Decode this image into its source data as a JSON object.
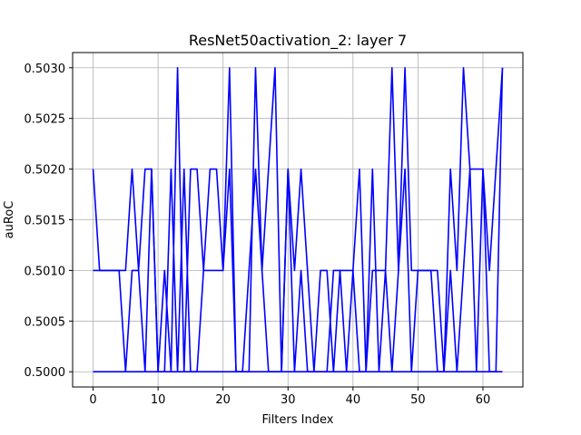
{
  "chart_data": {
    "type": "line",
    "title": "ResNet50activation_2: layer 7",
    "xlabel": "Filters Index",
    "ylabel": "auRoC",
    "xlim": [
      -3.15,
      66.15
    ],
    "ylim": [
      0.49985,
      0.50315
    ],
    "xticks": [
      0,
      10,
      20,
      30,
      40,
      50,
      60
    ],
    "yticks": [
      0.5,
      0.5005,
      0.501,
      0.5015,
      0.502,
      0.5025,
      0.503
    ],
    "ytick_labels": [
      "0.5000",
      "0.5005",
      "0.5010",
      "0.5015",
      "0.5020",
      "0.5025",
      "0.5030"
    ],
    "grid": true,
    "color": "#0000ff",
    "series": [
      {
        "x": [
          0,
          1,
          2,
          3,
          4,
          5,
          6,
          7,
          8,
          9,
          10,
          11,
          12,
          13,
          14,
          15,
          16,
          17,
          18,
          19,
          20,
          21,
          22,
          23,
          24,
          25,
          26,
          27,
          28,
          29,
          30,
          31,
          32,
          33,
          34,
          35,
          36,
          37,
          38,
          39,
          40,
          41,
          42,
          43,
          44,
          45,
          46,
          47,
          48,
          49,
          50,
          51,
          52,
          53,
          54,
          55,
          56,
          57,
          58,
          59,
          60,
          61,
          62,
          63
        ],
        "values": [
          0.502,
          0.501,
          0.501,
          0.501,
          0.501,
          0.501,
          0.502,
          0.501,
          0.5,
          0.502,
          0.5,
          0.501,
          0.5,
          0.503,
          0.5,
          0.502,
          0.502,
          0.501,
          0.502,
          0.502,
          0.501,
          0.503,
          0.5,
          0.5,
          0.5,
          0.503,
          0.501,
          0.502,
          0.503,
          0.5,
          0.502,
          0.501,
          0.502,
          0.501,
          0.5,
          0.5,
          0.5,
          0.501,
          0.501,
          0.5,
          0.501,
          0.502,
          0.5,
          0.501,
          0.501,
          0.501,
          0.503,
          0.501,
          0.503,
          0.501,
          0.501,
          0.501,
          0.501,
          0.501,
          0.5,
          0.502,
          0.501,
          0.503,
          0.502,
          0.502,
          0.502,
          0.501,
          0.502,
          0.503
        ]
      },
      {
        "x": [
          0,
          1,
          2,
          3,
          4,
          5,
          6,
          7,
          8,
          9,
          10,
          11,
          12,
          13,
          14,
          15,
          16,
          17,
          18,
          19,
          20,
          21,
          22,
          23,
          24,
          25,
          26,
          27,
          28,
          29,
          30,
          31,
          32,
          33,
          34,
          35,
          36,
          37,
          38,
          39,
          40,
          41,
          42,
          43,
          44,
          45,
          46,
          47,
          48,
          49,
          50,
          51,
          52,
          53,
          54,
          55,
          56,
          57,
          58,
          59,
          60,
          61,
          62,
          63
        ],
        "values": [
          0.501,
          0.501,
          0.501,
          0.501,
          0.501,
          0.5,
          0.501,
          0.501,
          0.502,
          0.502,
          0.5,
          0.5,
          0.502,
          0.5,
          0.502,
          0.5,
          0.5,
          0.501,
          0.501,
          0.501,
          0.501,
          0.502,
          0.5,
          0.5,
          0.501,
          0.502,
          0.501,
          0.5,
          0.5,
          0.5,
          0.502,
          0.5,
          0.501,
          0.5,
          0.5,
          0.501,
          0.501,
          0.5,
          0.501,
          0.501,
          0.501,
          0.5,
          0.5,
          0.502,
          0.5,
          0.501,
          0.5,
          0.501,
          0.502,
          0.5,
          0.501,
          0.501,
          0.501,
          0.5,
          0.5,
          0.501,
          0.5,
          0.501,
          0.502,
          0.5,
          0.502,
          0.5,
          0.5,
          0.503
        ]
      },
      {
        "x": [
          0,
          1,
          2,
          3,
          4,
          5,
          6,
          7,
          8,
          9,
          10,
          11,
          12,
          13,
          14,
          15,
          16,
          17,
          18,
          19,
          20,
          21,
          22,
          23,
          24,
          25,
          26,
          27,
          28,
          29,
          30,
          31,
          32,
          33,
          34,
          35,
          36,
          37,
          38,
          39,
          40,
          41,
          42,
          43,
          44,
          45,
          46,
          47,
          48,
          49,
          50,
          51,
          52,
          53,
          54,
          55,
          56,
          57,
          58,
          59,
          60,
          61,
          62,
          63
        ],
        "values": [
          0.5,
          0.5,
          0.5,
          0.5,
          0.5,
          0.5,
          0.5,
          0.5,
          0.5,
          0.5,
          0.5,
          0.5,
          0.5,
          0.5,
          0.5,
          0.5,
          0.5,
          0.5,
          0.5,
          0.5,
          0.5,
          0.5,
          0.5,
          0.5,
          0.5,
          0.5,
          0.5,
          0.5,
          0.5,
          0.5,
          0.5,
          0.5,
          0.5,
          0.5,
          0.5,
          0.5,
          0.5,
          0.5,
          0.5,
          0.5,
          0.5,
          0.5,
          0.5,
          0.5,
          0.5,
          0.5,
          0.5,
          0.5,
          0.5,
          0.5,
          0.5,
          0.5,
          0.5,
          0.5,
          0.5,
          0.5,
          0.5,
          0.5,
          0.5,
          0.5,
          0.5,
          0.5,
          0.5,
          0.5
        ]
      }
    ]
  }
}
